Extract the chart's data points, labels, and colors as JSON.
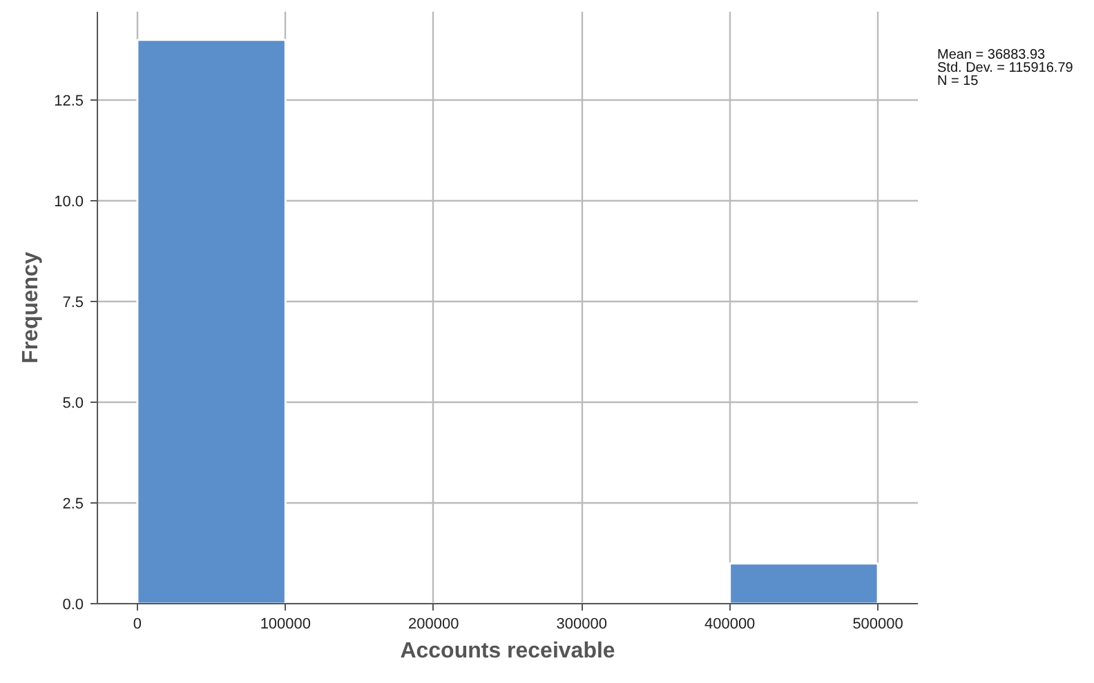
{
  "chart_data": {
    "type": "histogram",
    "xlabel": "Accounts receivable",
    "ylabel": "Frequency",
    "bins": [
      0,
      100000,
      200000,
      300000,
      400000,
      500000
    ],
    "values": [
      14,
      0,
      0,
      0,
      1
    ],
    "color": "#5b8fcc",
    "xlim": [
      -27000,
      527000
    ],
    "ylim": [
      0,
      14.7
    ],
    "xticks": [
      0,
      100000,
      200000,
      300000,
      400000,
      500000
    ],
    "yticks": [
      {
        "value": 0,
        "label": "0.0"
      },
      {
        "value": 2.5,
        "label": "2.5"
      },
      {
        "value": 5,
        "label": "5.0"
      },
      {
        "value": 7.5,
        "label": "7.5"
      },
      {
        "value": 10,
        "label": "10.0"
      },
      {
        "value": 12.5,
        "label": "12.5"
      }
    ],
    "grid": true,
    "annotations": [
      "Mean = 36883.93",
      "Std. Dev. = 115916.79",
      "N = 15"
    ]
  }
}
